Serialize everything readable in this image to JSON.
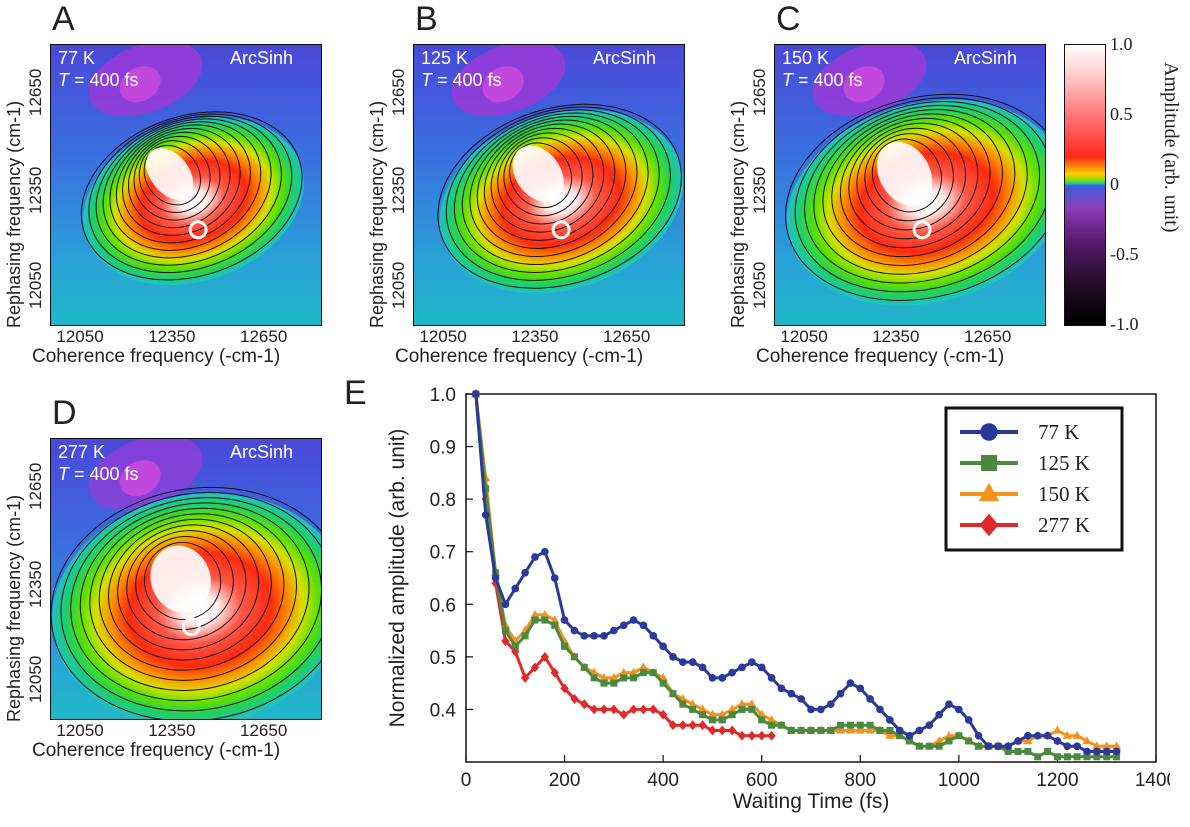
{
  "maps": [
    {
      "letter": "A",
      "temp": "77 K",
      "time": "= 400 fs",
      "tvar": "T",
      "scale": "ArcSinh"
    },
    {
      "letter": "B",
      "temp": "125 K",
      "time": "= 400 fs",
      "tvar": "T",
      "scale": "ArcSinh"
    },
    {
      "letter": "C",
      "temp": "150 K",
      "time": "= 400 fs",
      "tvar": "T",
      "scale": "ArcSinh"
    },
    {
      "letter": "D",
      "temp": "277 K",
      "time": "= 400 fs",
      "tvar": "T",
      "scale": "ArcSinh"
    }
  ],
  "map_axes": {
    "xlabel": "Coherence frequency (-cm-1)",
    "ylabel": "Rephasing frequency (cm-1)",
    "xticks": [
      "12050",
      "12350",
      "12650"
    ],
    "yticks": [
      "12050",
      "12350",
      "12650"
    ]
  },
  "colorbar": {
    "label": "Amplitude (arb. unit)",
    "ticks": [
      "1.0",
      "0.5",
      "0",
      "-0.5",
      "-1.0"
    ]
  },
  "line_panel_letter": "E",
  "chart_data": {
    "type": "line",
    "xlabel": "Waiting Time (fs)",
    "ylabel": "Normalized amplitude (arb. unit)",
    "xlim": [
      0,
      1400
    ],
    "ylim": [
      0.3,
      1.0
    ],
    "xticks": [
      0,
      200,
      400,
      600,
      800,
      1000,
      1200,
      1400
    ],
    "yticks": [
      0.4,
      0.5,
      0.6,
      0.7,
      0.8,
      0.9,
      1.0
    ],
    "legend_position": "top-right",
    "series": [
      {
        "name": "77 K",
        "color": "#2b3a99",
        "marker": "circle",
        "x": [
          20,
          40,
          60,
          80,
          100,
          120,
          140,
          160,
          180,
          200,
          220,
          240,
          260,
          280,
          300,
          320,
          340,
          360,
          380,
          400,
          420,
          440,
          460,
          480,
          500,
          520,
          540,
          560,
          580,
          600,
          620,
          640,
          660,
          680,
          700,
          720,
          740,
          760,
          780,
          800,
          820,
          840,
          860,
          880,
          900,
          920,
          940,
          960,
          980,
          1000,
          1020,
          1040,
          1060,
          1080,
          1100,
          1120,
          1140,
          1160,
          1180,
          1200,
          1220,
          1240,
          1260,
          1280,
          1300,
          1320
        ],
        "y": [
          1.0,
          0.77,
          0.65,
          0.6,
          0.63,
          0.66,
          0.69,
          0.7,
          0.65,
          0.57,
          0.55,
          0.54,
          0.54,
          0.54,
          0.55,
          0.56,
          0.57,
          0.56,
          0.54,
          0.52,
          0.5,
          0.49,
          0.49,
          0.48,
          0.46,
          0.46,
          0.47,
          0.48,
          0.49,
          0.48,
          0.46,
          0.44,
          0.43,
          0.42,
          0.4,
          0.4,
          0.41,
          0.43,
          0.45,
          0.44,
          0.42,
          0.4,
          0.38,
          0.36,
          0.35,
          0.36,
          0.37,
          0.39,
          0.41,
          0.4,
          0.38,
          0.35,
          0.33,
          0.33,
          0.33,
          0.34,
          0.35,
          0.35,
          0.35,
          0.34,
          0.33,
          0.33,
          0.32,
          0.32,
          0.32,
          0.32
        ]
      },
      {
        "name": "125 K",
        "color": "#4a8a3f",
        "marker": "square",
        "x": [
          20,
          40,
          60,
          80,
          100,
          120,
          140,
          160,
          180,
          200,
          220,
          240,
          260,
          280,
          300,
          320,
          340,
          360,
          380,
          400,
          420,
          440,
          460,
          480,
          500,
          520,
          540,
          560,
          580,
          600,
          620,
          640,
          660,
          680,
          700,
          720,
          740,
          760,
          780,
          800,
          820,
          840,
          860,
          880,
          900,
          920,
          940,
          960,
          980,
          1000,
          1020,
          1040,
          1060,
          1080,
          1100,
          1120,
          1140,
          1160,
          1180,
          1200,
          1220,
          1240,
          1260,
          1280,
          1300,
          1320
        ],
        "y": [
          1.0,
          0.82,
          0.66,
          0.55,
          0.52,
          0.54,
          0.57,
          0.57,
          0.56,
          0.52,
          0.5,
          0.48,
          0.46,
          0.45,
          0.45,
          0.46,
          0.46,
          0.47,
          0.47,
          0.45,
          0.43,
          0.41,
          0.4,
          0.39,
          0.38,
          0.38,
          0.39,
          0.4,
          0.4,
          0.38,
          0.37,
          0.37,
          0.36,
          0.36,
          0.36,
          0.36,
          0.36,
          0.37,
          0.37,
          0.37,
          0.37,
          0.36,
          0.36,
          0.35,
          0.34,
          0.33,
          0.33,
          0.33,
          0.34,
          0.35,
          0.34,
          0.33,
          0.33,
          0.33,
          0.32,
          0.32,
          0.32,
          0.31,
          0.32,
          0.31,
          0.31,
          0.31,
          0.31,
          0.31,
          0.31,
          0.31
        ]
      },
      {
        "name": "150 K",
        "color": "#f5921e",
        "marker": "triangle",
        "x": [
          20,
          40,
          60,
          80,
          100,
          120,
          140,
          160,
          180,
          200,
          220,
          240,
          260,
          280,
          300,
          320,
          340,
          360,
          380,
          400,
          420,
          440,
          460,
          480,
          500,
          520,
          540,
          560,
          580,
          600,
          620,
          640,
          660,
          680,
          700,
          720,
          740,
          760,
          780,
          800,
          820,
          840,
          860,
          880,
          900,
          920,
          940,
          960,
          980,
          1000,
          1020,
          1040,
          1060,
          1080,
          1100,
          1120,
          1140,
          1160,
          1180,
          1200,
          1220,
          1240,
          1260,
          1280,
          1300,
          1320
        ],
        "y": [
          1.0,
          0.84,
          0.66,
          0.56,
          0.53,
          0.55,
          0.58,
          0.58,
          0.57,
          0.53,
          0.5,
          0.48,
          0.47,
          0.46,
          0.46,
          0.47,
          0.47,
          0.48,
          0.47,
          0.46,
          0.43,
          0.42,
          0.41,
          0.4,
          0.39,
          0.39,
          0.4,
          0.41,
          0.41,
          0.39,
          0.38,
          0.37,
          0.36,
          0.36,
          0.36,
          0.36,
          0.36,
          0.36,
          0.36,
          0.36,
          0.36,
          0.36,
          0.35,
          0.35,
          0.34,
          0.33,
          0.33,
          0.34,
          0.35,
          0.35,
          0.34,
          0.33,
          0.33,
          0.33,
          0.33,
          0.34,
          0.34,
          0.35,
          0.35,
          0.36,
          0.35,
          0.35,
          0.34,
          0.33,
          0.33,
          0.33
        ]
      },
      {
        "name": "277 K",
        "color": "#e02a2a",
        "marker": "diamond",
        "x": [
          20,
          40,
          60,
          80,
          100,
          120,
          140,
          160,
          180,
          200,
          220,
          240,
          260,
          280,
          300,
          320,
          340,
          360,
          380,
          400,
          420,
          440,
          460,
          480,
          500,
          520,
          540,
          560,
          580,
          600,
          620
        ],
        "y": [
          1.0,
          0.8,
          0.64,
          0.53,
          0.51,
          0.46,
          0.48,
          0.5,
          0.47,
          0.44,
          0.42,
          0.41,
          0.4,
          0.4,
          0.4,
          0.39,
          0.4,
          0.4,
          0.4,
          0.39,
          0.37,
          0.37,
          0.37,
          0.37,
          0.36,
          0.36,
          0.36,
          0.35,
          0.35,
          0.35,
          0.35
        ]
      }
    ]
  }
}
